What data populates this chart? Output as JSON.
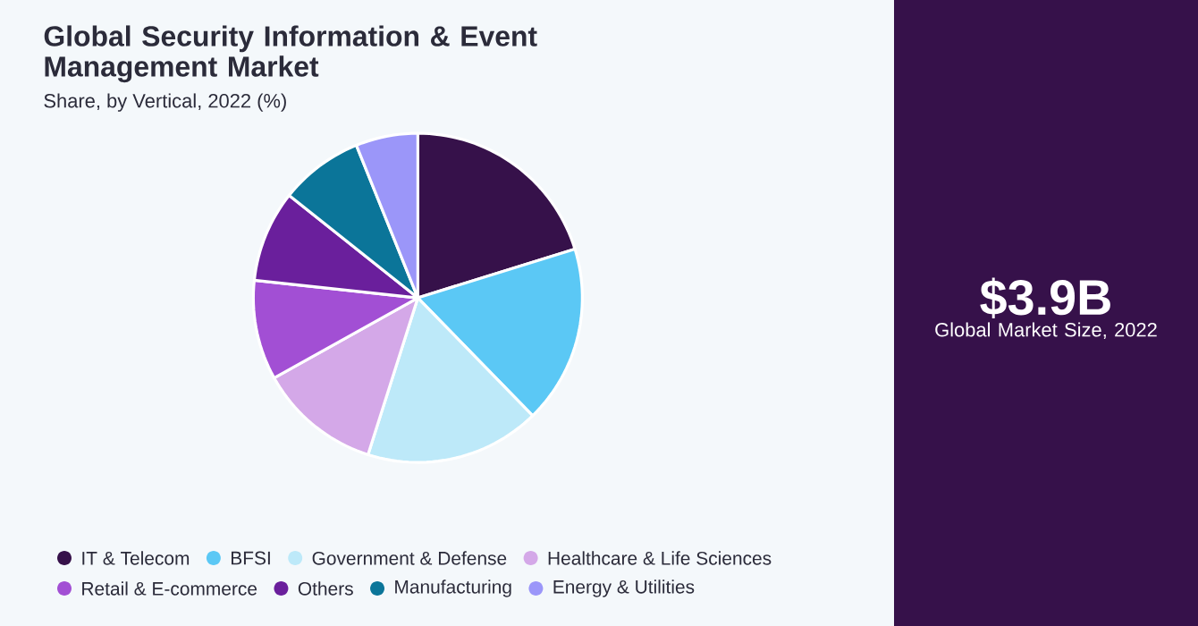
{
  "chart_data": {
    "type": "pie",
    "title": "Global Security Information & Event Management Market",
    "subtitle": "Share, by Vertical, 2022 (%)",
    "categories": [
      "IT & Telecom",
      "BFSI",
      "Government & Defense",
      "Healthcare & Life Sciences",
      "Retail & E-commerce",
      "Others",
      "Manufacturing",
      "Energy & Utilities"
    ],
    "values": [
      20.2,
      17.5,
      17.2,
      12,
      9.8,
      9,
      8.2,
      6.1
    ],
    "colors": [
      "#36114a",
      "#5bc8f5",
      "#bde9f9",
      "#d4a8e8",
      "#a24fd4",
      "#6a1f9c",
      "#0b7599",
      "#9b96f9"
    ],
    "legend": "bottom",
    "annotations": [
      "$3.9B",
      "Global Market Size, 2022"
    ]
  }
}
